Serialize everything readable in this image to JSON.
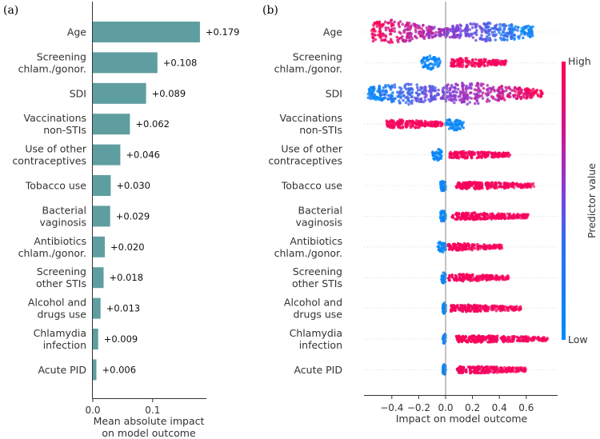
{
  "panels": {
    "a": "(a)",
    "b": "(b)"
  },
  "features": [
    [
      "Age"
    ],
    [
      "Screening",
      "chlam./gonor."
    ],
    [
      "SDI"
    ],
    [
      "Vaccinations",
      "non-STIs"
    ],
    [
      "Use of other",
      "contraceptives"
    ],
    [
      "Tobacco use"
    ],
    [
      "Bacterial",
      "vaginosis"
    ],
    [
      "Antibiotics",
      "chlam./gonor."
    ],
    [
      "Screening",
      "other STIs"
    ],
    [
      "Alcohol and",
      "drugs use"
    ],
    [
      "Chlamydia",
      "infection"
    ],
    [
      "Acute PID"
    ]
  ],
  "chart_data": [
    {
      "type": "bar",
      "orientation": "horizontal",
      "title": "(a)",
      "categories": [
        "Age",
        "Screening chlam./gonor.",
        "SDI",
        "Vaccinations non-STIs",
        "Use of other contraceptives",
        "Tobacco use",
        "Bacterial vaginosis",
        "Antibiotics chlam./gonor.",
        "Screening other STIs",
        "Alcohol and drugs use",
        "Chlamydia infection",
        "Acute PID"
      ],
      "values": [
        0.179,
        0.108,
        0.089,
        0.062,
        0.046,
        0.03,
        0.029,
        0.02,
        0.018,
        0.013,
        0.009,
        0.006
      ],
      "value_labels": [
        "+0.179",
        "+0.108",
        "+0.089",
        "+0.062",
        "+0.046",
        "+0.030",
        "+0.029",
        "+0.020",
        "+0.018",
        "+0.013",
        "+0.009",
        "+0.006"
      ],
      "xlabel": [
        "Mean absolute impact",
        "on model outcome"
      ],
      "xticks": [
        0.0,
        0.1
      ],
      "xtick_labels": [
        "0.0",
        "0.1"
      ],
      "xlim": [
        0,
        0.18
      ],
      "bar_color": "#5f9ea0"
    },
    {
      "type": "scatter",
      "subtype": "beeswarm",
      "title": "(b)",
      "categories": [
        "Age",
        "Screening chlam./gonor.",
        "SDI",
        "Vaccinations non-STIs",
        "Use of other contraceptives",
        "Tobacco use",
        "Bacterial vaginosis",
        "Antibiotics chlam./gonor.",
        "Screening other STIs",
        "Alcohol and drugs use",
        "Chlamydia infection",
        "Acute PID"
      ],
      "xlabel": "Impact on model outcome",
      "xticks": [
        -0.4,
        -0.2,
        0.0,
        0.2,
        0.4,
        0.6
      ],
      "xtick_labels": [
        "−0.4",
        "−0.2",
        "0.0",
        "0.2",
        "0.4",
        "0.6"
      ],
      "xlim": [
        -0.62,
        0.78
      ],
      "colorbar": {
        "label": "Predictor value",
        "high": "High",
        "low": "Low",
        "high_color": "#ff0052",
        "low_color": "#008bfb"
      },
      "rows": [
        {
          "feature": "Age",
          "low_cluster": [
            0.0,
            0.65
          ],
          "high_cluster": [
            -0.55,
            0.0
          ],
          "low_spread": 0.18,
          "high_spread": 0.22
        },
        {
          "feature": "Screening chlam./gonor.",
          "low_cluster": [
            -0.18,
            -0.04
          ],
          "high_cluster": [
            0.04,
            0.45
          ],
          "low_spread": 0.12,
          "high_spread": 0.06
        },
        {
          "feature": "SDI",
          "low_cluster": [
            -0.58,
            0.0
          ],
          "high_cluster": [
            0.0,
            0.72
          ],
          "low_spread": 0.2,
          "high_spread": 0.2
        },
        {
          "feature": "Vaccinations non-STIs",
          "low_cluster": [
            0.0,
            0.14
          ],
          "high_cluster": [
            -0.44,
            -0.02
          ],
          "low_spread": 0.1,
          "high_spread": 0.06
        },
        {
          "feature": "Use of other contraceptives",
          "low_cluster": [
            -0.1,
            -0.02
          ],
          "high_cluster": [
            0.02,
            0.48
          ],
          "low_spread": 0.1,
          "high_spread": 0.04
        },
        {
          "feature": "Tobacco use",
          "low_cluster": [
            -0.04,
            0.0
          ],
          "high_cluster": [
            0.08,
            0.66
          ],
          "low_spread": 0.1,
          "high_spread": 0.04
        },
        {
          "feature": "Bacterial vaginosis",
          "low_cluster": [
            -0.04,
            0.0
          ],
          "high_cluster": [
            0.04,
            0.62
          ],
          "low_spread": 0.1,
          "high_spread": 0.04
        },
        {
          "feature": "Antibiotics chlam./gonor.",
          "low_cluster": [
            -0.06,
            0.0
          ],
          "high_cluster": [
            0.02,
            0.42
          ],
          "low_spread": 0.1,
          "high_spread": 0.04
        },
        {
          "feature": "Screening other STIs",
          "low_cluster": [
            -0.03,
            0.0
          ],
          "high_cluster": [
            0.02,
            0.47
          ],
          "low_spread": 0.1,
          "high_spread": 0.04
        },
        {
          "feature": "Alcohol and drugs use",
          "low_cluster": [
            -0.02,
            0.0
          ],
          "high_cluster": [
            0.04,
            0.56
          ],
          "low_spread": 0.1,
          "high_spread": 0.04
        },
        {
          "feature": "Chlamydia infection",
          "low_cluster": [
            -0.02,
            0.0
          ],
          "high_cluster": [
            0.08,
            0.76
          ],
          "low_spread": 0.1,
          "high_spread": 0.04
        },
        {
          "feature": "Acute PID",
          "low_cluster": [
            -0.02,
            0.0
          ],
          "high_cluster": [
            0.08,
            0.6
          ],
          "low_spread": 0.1,
          "high_spread": 0.04
        }
      ]
    }
  ]
}
